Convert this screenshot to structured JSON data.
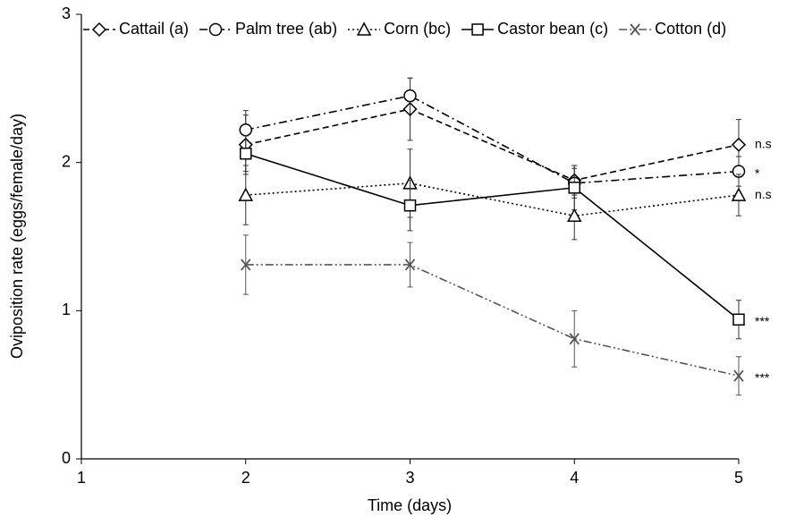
{
  "chart_data": {
    "type": "line",
    "x_label": "Time (days)",
    "y_label": "Oviposition rate (eggs/female/day)",
    "x": [
      2,
      3,
      4,
      5
    ],
    "xlim": [
      1,
      5
    ],
    "xticks": [
      1,
      2,
      3,
      4,
      5
    ],
    "ylim": [
      0,
      3
    ],
    "yticks": [
      0,
      1,
      2,
      3
    ],
    "grid": false,
    "legend": "top",
    "series": [
      {
        "name": "Cattail (a)",
        "color": "#000000",
        "dash": "7,4",
        "marker": "diamond",
        "values": [
          2.12,
          2.36,
          1.88,
          2.12
        ],
        "errors": [
          0.2,
          0.21,
          0.1,
          0.17
        ],
        "annotation": "n.s"
      },
      {
        "name": "Palm tree (ab)",
        "color": "#000000",
        "dash": "9,4,2,4",
        "marker": "circle",
        "values": [
          2.22,
          2.45,
          1.86,
          1.94
        ],
        "errors": [
          0.13,
          0.12,
          0.1,
          0.1
        ],
        "annotation": "*"
      },
      {
        "name": "Corn (bc)",
        "color": "#000000",
        "dash": "2,3",
        "marker": "triangle",
        "values": [
          1.78,
          1.86,
          1.64,
          1.78
        ],
        "errors": [
          0.2,
          0.23,
          0.16,
          0.14
        ],
        "annotation": "n.s"
      },
      {
        "name": "Castor bean (c)",
        "color": "#000000",
        "dash": "none",
        "marker": "square",
        "values": [
          2.06,
          1.71,
          1.83,
          0.94
        ],
        "errors": [
          0.12,
          0.17,
          0.15,
          0.13
        ],
        "annotation": "***"
      },
      {
        "name": "Cotton (d)",
        "color": "#555555",
        "dash": "9,3,2,3,2,3",
        "marker": "x",
        "values": [
          1.31,
          1.31,
          0.81,
          0.56
        ],
        "errors": [
          0.2,
          0.15,
          0.19,
          0.13
        ],
        "annotation": "***"
      }
    ]
  }
}
